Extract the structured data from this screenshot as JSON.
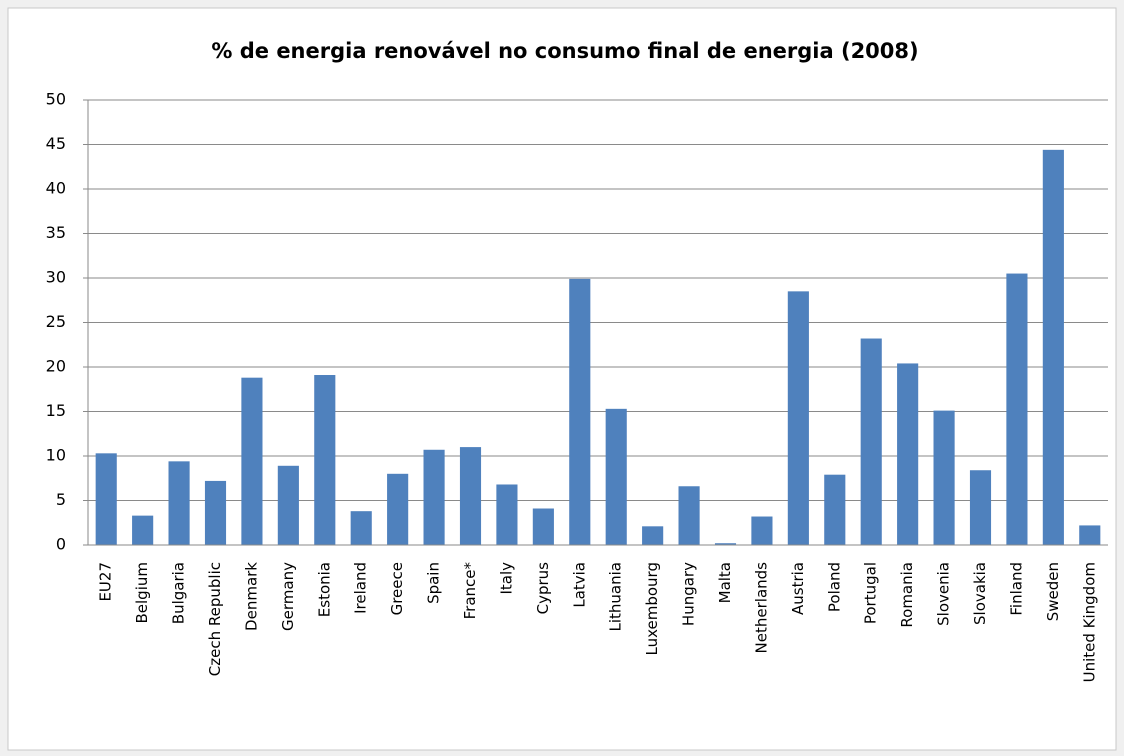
{
  "chart_data": {
    "type": "bar",
    "title": "% de energia renovável no consumo final de energia (2008)",
    "categories": [
      "EU27",
      "Belgium",
      "Bulgaria",
      "Czech Republic",
      "Denmark",
      "Germany",
      "Estonia",
      "Ireland",
      "Greece",
      "Spain",
      "France*",
      "Italy",
      "Cyprus",
      "Latvia",
      "Lithuania",
      "Luxembourg",
      "Hungary",
      "Malta",
      "Netherlands",
      "Austria",
      "Poland",
      "Portugal",
      "Romania",
      "Slovenia",
      "Slovakia",
      "Finland",
      "Sweden",
      "United Kingdom"
    ],
    "values": [
      10.3,
      3.3,
      9.4,
      7.2,
      18.8,
      8.9,
      19.1,
      3.8,
      8.0,
      10.7,
      11.0,
      6.8,
      4.1,
      29.9,
      15.3,
      2.1,
      6.6,
      0.2,
      3.2,
      28.5,
      7.9,
      23.2,
      20.4,
      15.1,
      8.4,
      30.5,
      44.4,
      2.2
    ],
    "color": "#4f81bd",
    "ylim": [
      0,
      50
    ],
    "yticks": [
      0,
      5,
      10,
      15,
      20,
      25,
      30,
      35,
      40,
      45,
      50
    ],
    "grid": true
  }
}
